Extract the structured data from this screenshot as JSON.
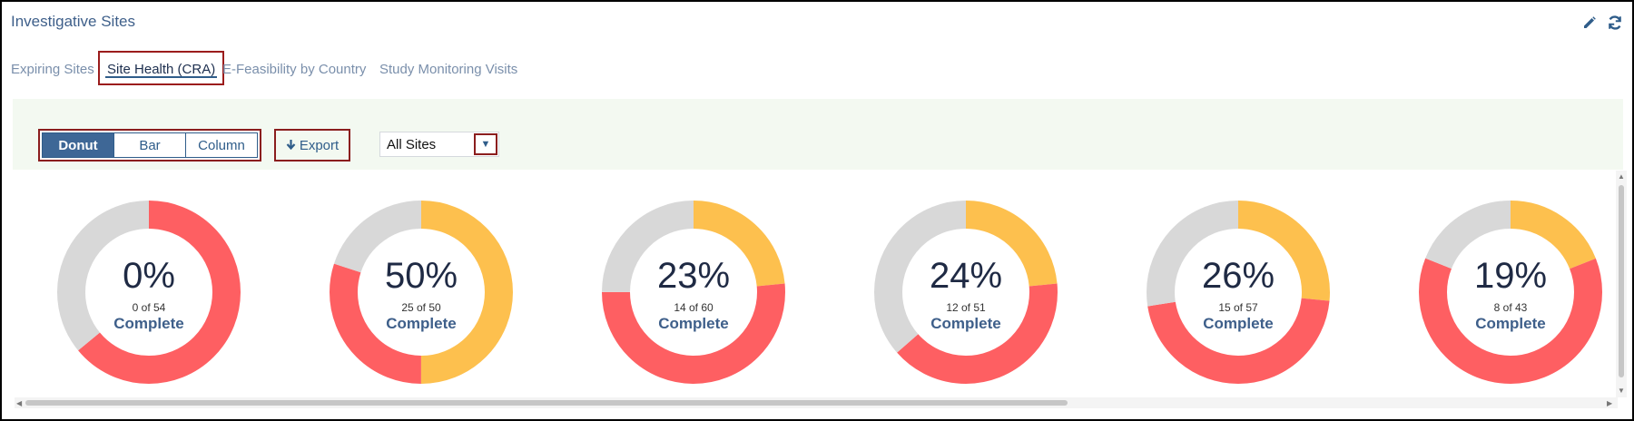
{
  "header": {
    "title": "Investigative Sites",
    "edit_icon": "pencil-icon",
    "refresh_icon": "refresh-icon"
  },
  "tabs": [
    {
      "label": "Expiring Sites",
      "active": false
    },
    {
      "label": "Site Health (CRA)",
      "active": true
    },
    {
      "label": "E-Feasibility by Country",
      "active": false
    },
    {
      "label": "Study Monitoring Visits",
      "active": false
    }
  ],
  "toolbar": {
    "chart_types": [
      {
        "label": "Donut",
        "selected": true
      },
      {
        "label": "Bar",
        "selected": false
      },
      {
        "label": "Column",
        "selected": false
      }
    ],
    "export_label": "Export",
    "export_icon": "arrow-down-icon",
    "filter_value": "All Sites",
    "filter_icon": "caret-down-icon"
  },
  "colors": {
    "red": "#fe5f62",
    "yellow": "#fdc04e",
    "grey": "#d8d8d8",
    "accent": "#3e6796"
  },
  "donuts": [
    {
      "pct": "0%",
      "fraction": "0 of 54",
      "label": "Complete",
      "segments": [
        {
          "color": "red",
          "value": 0.64
        },
        {
          "color": "grey",
          "value": 0.36
        }
      ]
    },
    {
      "pct": "50%",
      "fraction": "25 of 50",
      "label": "Complete",
      "segments": [
        {
          "color": "yellow",
          "value": 0.5
        },
        {
          "color": "red",
          "value": 0.3
        },
        {
          "color": "grey",
          "value": 0.2
        }
      ]
    },
    {
      "pct": "23%",
      "fraction": "14 of 60",
      "label": "Complete",
      "segments": [
        {
          "color": "yellow",
          "value": 0.235
        },
        {
          "color": "red",
          "value": 0.515
        },
        {
          "color": "grey",
          "value": 0.25
        }
      ]
    },
    {
      "pct": "24%",
      "fraction": "12 of 51",
      "label": "Complete",
      "segments": [
        {
          "color": "yellow",
          "value": 0.235
        },
        {
          "color": "red",
          "value": 0.4
        },
        {
          "color": "grey",
          "value": 0.365
        }
      ]
    },
    {
      "pct": "26%",
      "fraction": "15 of 57",
      "label": "Complete",
      "segments": [
        {
          "color": "yellow",
          "value": 0.265
        },
        {
          "color": "red",
          "value": 0.46
        },
        {
          "color": "grey",
          "value": 0.275
        }
      ]
    },
    {
      "pct": "19%",
      "fraction": "8 of 43",
      "label": "Complete",
      "segments": [
        {
          "color": "yellow",
          "value": 0.19
        },
        {
          "color": "red",
          "value": 0.62
        },
        {
          "color": "grey",
          "value": 0.19
        }
      ]
    }
  ]
}
